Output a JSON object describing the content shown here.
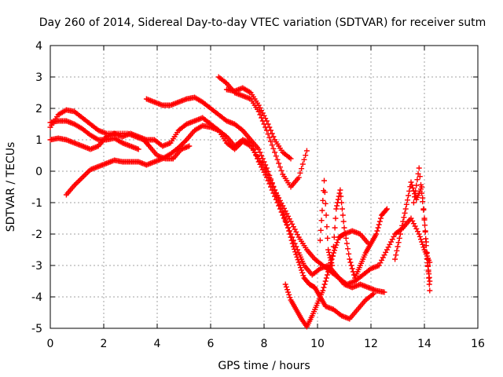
{
  "chart_data": {
    "type": "scatter",
    "title": "Day 260 of 2014, Sidereal Day-to-day VTEC variation (SDTVAR) for receiver sutm",
    "xlabel": "GPS time / hours",
    "ylabel": "SDTVAR / TECUs",
    "xlim": [
      0,
      16
    ],
    "ylim": [
      -5,
      4
    ],
    "xticks": [
      0,
      2,
      4,
      6,
      8,
      10,
      12,
      14,
      16
    ],
    "yticks": [
      -5,
      -4,
      -3,
      -2,
      -1,
      0,
      1,
      2,
      3,
      4
    ],
    "xtick_labels": [
      "0",
      "2",
      "4",
      "6",
      "8",
      "10",
      "12",
      "14",
      "16"
    ],
    "ytick_labels": [
      "-5",
      "-4",
      "-3",
      "-2",
      "-1",
      "0",
      "1",
      "2",
      "3",
      "4"
    ],
    "grid": true,
    "legend": "none",
    "marker": "plus",
    "color": "#ff0000",
    "series": [
      {
        "points": [
          [
            0,
            1.4
          ],
          [
            0.3,
            1.8
          ],
          [
            0.6,
            1.95
          ],
          [
            0.9,
            1.9
          ],
          [
            1.2,
            1.7
          ],
          [
            1.5,
            1.5
          ],
          [
            1.8,
            1.3
          ],
          [
            2.1,
            1.2
          ],
          [
            2.5,
            1.2
          ],
          [
            2.9,
            1.2
          ],
          [
            3.2,
            1.1
          ],
          [
            3.5,
            1.0
          ],
          [
            3.7,
            0.8
          ],
          [
            4.0,
            0.5
          ],
          [
            4.3,
            0.4
          ],
          [
            4.6,
            0.4
          ],
          [
            4.9,
            0.7
          ],
          [
            5.2,
            0.8
          ]
        ]
      },
      {
        "points": [
          [
            0,
            1.55
          ],
          [
            0.3,
            1.6
          ],
          [
            0.6,
            1.6
          ],
          [
            0.9,
            1.5
          ],
          [
            1.2,
            1.35
          ],
          [
            1.5,
            1.15
          ],
          [
            1.8,
            1.0
          ],
          [
            2.1,
            1.0
          ],
          [
            2.4,
            1.05
          ],
          [
            2.7,
            0.9
          ],
          [
            3.0,
            0.8
          ],
          [
            3.3,
            0.7
          ]
        ]
      },
      {
        "points": [
          [
            0,
            1.0
          ],
          [
            0.3,
            1.05
          ],
          [
            0.6,
            1.0
          ],
          [
            0.9,
            0.9
          ],
          [
            1.2,
            0.8
          ],
          [
            1.5,
            0.7
          ],
          [
            1.8,
            0.8
          ],
          [
            2.1,
            1.1
          ],
          [
            2.4,
            1.2
          ],
          [
            2.7,
            1.1
          ],
          [
            3.0,
            1.2
          ],
          [
            3.3,
            1.1
          ],
          [
            3.6,
            1.0
          ],
          [
            3.9,
            1.0
          ],
          [
            4.2,
            0.8
          ],
          [
            4.5,
            0.9
          ],
          [
            4.8,
            1.3
          ],
          [
            5.1,
            1.5
          ],
          [
            5.4,
            1.6
          ],
          [
            5.7,
            1.7
          ],
          [
            6.0,
            1.5
          ],
          [
            6.3,
            1.3
          ],
          [
            6.6,
            0.9
          ],
          [
            6.9,
            0.7
          ],
          [
            7.2,
            0.95
          ],
          [
            7.5,
            0.8
          ],
          [
            7.8,
            0.4
          ],
          [
            8.1,
            0.0
          ],
          [
            8.4,
            -0.6
          ],
          [
            8.7,
            -1.1
          ],
          [
            9.0,
            -1.6
          ],
          [
            9.3,
            -2.1
          ],
          [
            9.6,
            -2.5
          ],
          [
            9.9,
            -2.8
          ],
          [
            10.2,
            -3.0
          ],
          [
            10.5,
            -3.2
          ],
          [
            10.8,
            -3.4
          ],
          [
            11.1,
            -3.6
          ],
          [
            11.4,
            -3.5
          ],
          [
            11.7,
            -3.3
          ],
          [
            12.0,
            -3.1
          ],
          [
            12.3,
            -3.0
          ],
          [
            12.6,
            -2.5
          ],
          [
            12.9,
            -2.0
          ],
          [
            13.2,
            -1.8
          ],
          [
            13.5,
            -1.5
          ],
          [
            13.8,
            -2.0
          ],
          [
            14.0,
            -2.5
          ],
          [
            14.2,
            -2.9
          ]
        ]
      },
      {
        "points": [
          [
            0.6,
            -0.75
          ],
          [
            0.9,
            -0.45
          ],
          [
            1.2,
            -0.2
          ],
          [
            1.5,
            0.05
          ],
          [
            1.8,
            0.15
          ],
          [
            2.1,
            0.25
          ],
          [
            2.4,
            0.35
          ],
          [
            2.7,
            0.3
          ],
          [
            3.0,
            0.3
          ],
          [
            3.3,
            0.3
          ],
          [
            3.6,
            0.2
          ],
          [
            3.9,
            0.3
          ],
          [
            4.2,
            0.4
          ],
          [
            4.5,
            0.55
          ],
          [
            4.8,
            0.75
          ],
          [
            5.1,
            1.0
          ],
          [
            5.4,
            1.3
          ],
          [
            5.7,
            1.45
          ],
          [
            6.0,
            1.4
          ],
          [
            6.3,
            1.3
          ],
          [
            6.6,
            1.1
          ],
          [
            6.9,
            0.8
          ],
          [
            7.2,
            1.0
          ],
          [
            7.5,
            0.9
          ],
          [
            7.8,
            0.3
          ],
          [
            8.1,
            -0.2
          ],
          [
            8.4,
            -0.8
          ],
          [
            8.7,
            -1.4
          ],
          [
            9.0,
            -2.0
          ],
          [
            9.3,
            -2.6
          ],
          [
            9.5,
            -3.0
          ],
          [
            9.8,
            -3.3
          ],
          [
            10.1,
            -3.1
          ],
          [
            10.4,
            -3.0
          ],
          [
            10.7,
            -3.3
          ],
          [
            11.0,
            -3.6
          ],
          [
            11.3,
            -3.7
          ],
          [
            11.6,
            -3.6
          ],
          [
            11.9,
            -3.7
          ],
          [
            12.2,
            -3.8
          ],
          [
            12.5,
            -3.85
          ]
        ]
      },
      {
        "points": [
          [
            3.6,
            2.3
          ],
          [
            3.9,
            2.2
          ],
          [
            4.2,
            2.1
          ],
          [
            4.5,
            2.1
          ],
          [
            4.8,
            2.2
          ],
          [
            5.1,
            2.3
          ],
          [
            5.4,
            2.35
          ],
          [
            5.7,
            2.2
          ],
          [
            6.0,
            2.0
          ],
          [
            6.3,
            1.8
          ],
          [
            6.6,
            1.6
          ],
          [
            6.9,
            1.5
          ],
          [
            7.2,
            1.3
          ],
          [
            7.5,
            1.0
          ],
          [
            7.8,
            0.7
          ],
          [
            8.1,
            0.1
          ],
          [
            8.4,
            -0.6
          ],
          [
            8.7,
            -1.3
          ],
          [
            8.9,
            -1.8
          ],
          [
            9.1,
            -2.4
          ],
          [
            9.3,
            -2.9
          ],
          [
            9.5,
            -3.4
          ],
          [
            9.7,
            -3.6
          ],
          [
            9.9,
            -3.7
          ],
          [
            10.1,
            -4.0
          ],
          [
            10.3,
            -4.3
          ],
          [
            10.6,
            -4.4
          ],
          [
            10.9,
            -4.6
          ],
          [
            11.2,
            -4.7
          ],
          [
            11.5,
            -4.4
          ],
          [
            11.8,
            -4.1
          ],
          [
            12.1,
            -3.9
          ]
        ]
      },
      {
        "points": [
          [
            6.3,
            3.0
          ],
          [
            6.6,
            2.8
          ],
          [
            6.9,
            2.5
          ],
          [
            7.2,
            2.4
          ],
          [
            7.5,
            2.3
          ],
          [
            7.8,
            1.9
          ],
          [
            8.1,
            1.3
          ],
          [
            8.4,
            0.6
          ],
          [
            8.7,
            -0.1
          ],
          [
            9.0,
            -0.5
          ],
          [
            9.3,
            -0.2
          ],
          [
            9.6,
            0.65
          ]
        ]
      },
      {
        "points": [
          [
            6.6,
            2.6
          ],
          [
            6.9,
            2.55
          ],
          [
            7.2,
            2.65
          ],
          [
            7.5,
            2.5
          ],
          [
            7.8,
            2.1
          ],
          [
            8.1,
            1.6
          ],
          [
            8.4,
            1.0
          ],
          [
            8.7,
            0.6
          ],
          [
            9.0,
            0.4
          ]
        ]
      },
      {
        "points": [
          [
            8.8,
            -3.6
          ],
          [
            9.0,
            -4.1
          ],
          [
            9.2,
            -4.4
          ],
          [
            9.4,
            -4.7
          ],
          [
            9.6,
            -4.95
          ],
          [
            9.8,
            -4.6
          ],
          [
            10.0,
            -4.2
          ],
          [
            10.2,
            -3.8
          ],
          [
            10.4,
            -3.2
          ],
          [
            10.6,
            -2.6
          ],
          [
            10.8,
            -2.1
          ],
          [
            11.0,
            -2.0
          ],
          [
            11.3,
            -1.9
          ],
          [
            11.6,
            -2.0
          ],
          [
            11.9,
            -2.3
          ]
        ]
      },
      {
        "points": [
          [
            10.1,
            -2.2
          ],
          [
            10.25,
            -0.3
          ],
          [
            10.4,
            -2.5
          ],
          [
            10.55,
            -3.0
          ],
          [
            10.7,
            -1.2
          ],
          [
            10.85,
            -0.6
          ],
          [
            11.0,
            -1.8
          ],
          [
            11.2,
            -2.8
          ],
          [
            11.4,
            -3.4
          ],
          [
            11.6,
            -3.0
          ],
          [
            11.8,
            -2.6
          ],
          [
            12.0,
            -2.3
          ],
          [
            12.2,
            -2.0
          ],
          [
            12.4,
            -1.4
          ],
          [
            12.6,
            -1.2
          ]
        ]
      },
      {
        "points": [
          [
            12.9,
            -2.8
          ],
          [
            13.1,
            -2.0
          ],
          [
            13.3,
            -1.2
          ],
          [
            13.5,
            -0.35
          ],
          [
            13.7,
            -0.9
          ],
          [
            13.9,
            -0.5
          ],
          [
            14.1,
            -2.6
          ],
          [
            14.2,
            -3.8
          ]
        ]
      },
      {
        "points": [
          [
            13.6,
            -1.0
          ],
          [
            13.8,
            0.1
          ],
          [
            14.0,
            -1.5
          ],
          [
            14.1,
            -2.8
          ],
          [
            14.2,
            -3.5
          ]
        ]
      }
    ]
  }
}
